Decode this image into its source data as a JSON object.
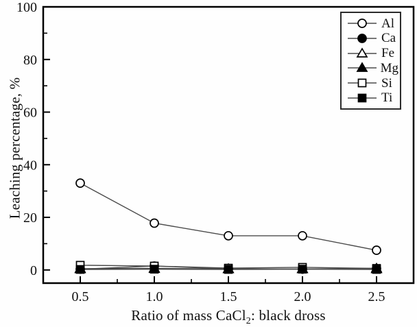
{
  "figure": {
    "background": "#fefefe",
    "axis_color": "#000000"
  },
  "chart_data": {
    "type": "line",
    "title": "",
    "ylabel": "Leaching percentage, %",
    "xlabel_parts": {
      "pre": "Ratio of mass CaCl",
      "sub": "2",
      "post": ": black dross"
    },
    "xlim": [
      0.25,
      2.75
    ],
    "ylim": [
      -5,
      100
    ],
    "grid": false,
    "legend_position": "top-right",
    "x_ticks": [
      0.5,
      1.0,
      1.5,
      2.0,
      2.5
    ],
    "x_tick_labels": [
      "0.5",
      "1.0",
      "1.5",
      "2.0",
      "2.5"
    ],
    "x_minor_ticks": [
      0.75,
      1.25,
      1.75,
      2.25
    ],
    "y_ticks": [
      0,
      20,
      40,
      60,
      80,
      100
    ],
    "y_tick_labels": [
      "0",
      "20",
      "40",
      "60",
      "80",
      "100"
    ],
    "y_minor_ticks": [
      10,
      30,
      50,
      70,
      90
    ],
    "x": [
      0.5,
      1.0,
      1.5,
      2.0,
      2.5
    ],
    "series": [
      {
        "name": "Al",
        "marker": "circle-open",
        "values": [
          33.0,
          17.8,
          13.0,
          13.0,
          7.5
        ]
      },
      {
        "name": "Ca",
        "marker": "circle-filled",
        "values": [
          0.3,
          1.5,
          0.4,
          0.3,
          0.5
        ]
      },
      {
        "name": "Fe",
        "marker": "triangle-open",
        "values": [
          0.3,
          0.4,
          0.3,
          0.3,
          0.3
        ]
      },
      {
        "name": "Mg",
        "marker": "triangle-filled",
        "values": [
          0.5,
          0.6,
          0.4,
          0.4,
          0.6
        ]
      },
      {
        "name": "Si",
        "marker": "square-open",
        "values": [
          1.8,
          1.5,
          0.7,
          1.0,
          0.6
        ]
      },
      {
        "name": "Ti",
        "marker": "square-filled",
        "values": [
          0.2,
          0.3,
          0.2,
          0.3,
          0.2
        ]
      }
    ],
    "line_color": "#4a4a4a",
    "marker_color": "#000000"
  }
}
